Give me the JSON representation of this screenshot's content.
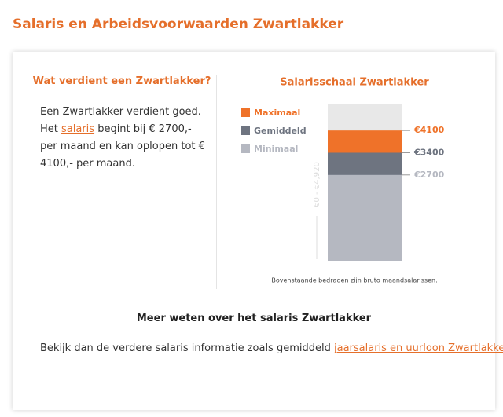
{
  "header": {
    "title": "Salaris en Arbeidsvoorwaarden Zwartlakker"
  },
  "left": {
    "heading": "Wat verdient een Zwartlakker?",
    "text_before": "Een Zwartlakker verdient goed. Het ",
    "link": "salaris",
    "text_after": " begint bij € 2700,- per maand en kan oplopen tot € 4100,- per maand."
  },
  "chart_data": {
    "type": "bar",
    "title": "Salarisschaal Zwartlakker",
    "y_label": "€0 - €4,920",
    "ylim": [
      0,
      4920
    ],
    "background_color": "#e8e8e8",
    "series": [
      {
        "name": "Maximaal",
        "color": "#ef7229",
        "values": [
          4100
        ],
        "value_labels": [
          "€4100"
        ]
      },
      {
        "name": "Gemiddeld",
        "color": "#6e7480",
        "values": [
          3400
        ],
        "value_labels": [
          "€3400"
        ]
      },
      {
        "name": "Minimaal",
        "color": "#b5b8c1",
        "values": [
          2700
        ],
        "value_labels": [
          "€2700"
        ]
      }
    ],
    "note": "Bovenstaande bedragen zijn bruto maandsalarissen."
  },
  "bottom": {
    "heading": "Meer weten over het salaris Zwartlakker",
    "text_before": "Bekijk dan de verdere salaris informatie zoals gemiddeld ",
    "link": "jaarsalaris en uurloon Zwartlakker"
  }
}
